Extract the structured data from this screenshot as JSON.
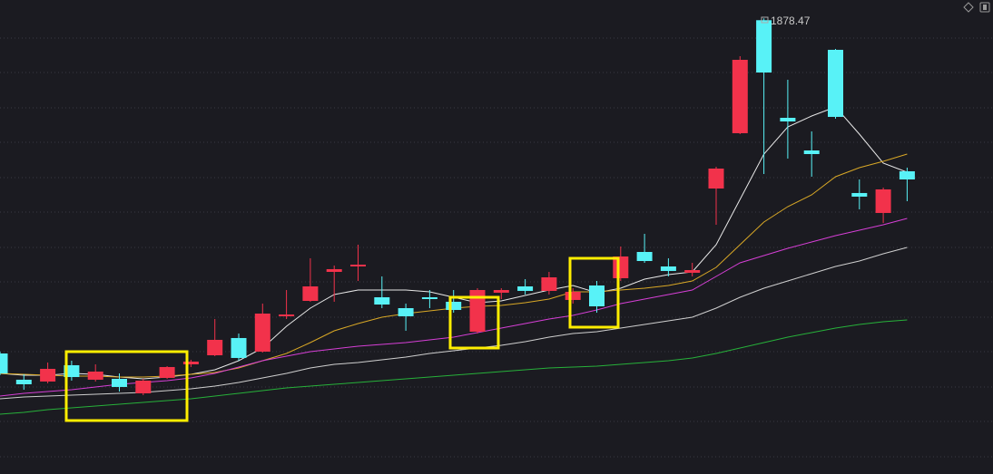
{
  "chart_data": {
    "type": "candlestick",
    "up_color": "#f2324b",
    "down_color": "#58f2f7",
    "ylim": [
      1000,
      1900
    ],
    "open": [
      1231.5,
      1180.8,
      1177.3,
      1208.8,
      1180.8,
      1182.5,
      1154.5,
      1184.3,
      1210.5,
      1228,
      1261.3,
      1235,
      1303.3,
      1333,
      1389,
      1399.5,
      1340,
      1319,
      1340,
      1331.3,
      1273.5,
      1348.8,
      1361,
      1352.3,
      1334.8,
      1362.8,
      1376.8,
      1427.5,
      1399.5,
      1387.3,
      1550,
      1656.8,
      1875,
      1686.5,
      1623.5,
      1817.8,
      1541.3,
      1502.8,
      1583.3
    ],
    "high": [
      1235,
      1191.3,
      1214,
      1217.5,
      1210.5,
      1193,
      1182.5,
      1207,
      1219.3,
      1298,
      1270,
      1327.8,
      1354,
      1415.3,
      1401.3,
      1441.5,
      1380.3,
      1327.8,
      1354,
      1354,
      1357.5,
      1357.5,
      1375,
      1389,
      1357.5,
      1371.5,
      1438,
      1462.5,
      1415.3,
      1406.5,
      1592,
      1805.5,
      1878.47,
      1760,
      1660.3,
      1819.5,
      1567.5,
      1551.8,
      1590.3
    ],
    "low": [
      1189.5,
      1161.5,
      1173.8,
      1179,
      1177.3,
      1158,
      1151,
      1182.5,
      1205.3,
      1226.3,
      1217.5,
      1233.3,
      1298,
      1331.3,
      1331.3,
      1371.5,
      1319,
      1275.3,
      1319,
      1310.3,
      1270,
      1336.5,
      1345.3,
      1345.3,
      1327.8,
      1310.3,
      1371.5,
      1406.5,
      1380.3,
      1380.3,
      1480,
      1655,
      1578,
      1607.8,
      1572.8,
      1684.8,
      1509.8,
      1483.5,
      1525.5
    ],
    "close": [
      1193,
      1172,
      1201.8,
      1186,
      1196.5,
      1166.8,
      1179,
      1205.3,
      1215.8,
      1257.8,
      1222.8,
      1308.5,
      1306.8,
      1361,
      1394.3,
      1403,
      1326,
      1303.3,
      1336.5,
      1315.5,
      1354,
      1354,
      1352.3,
      1378.5,
      1350.5,
      1322.5,
      1418.8,
      1410,
      1390.8,
      1392.5,
      1588.5,
      1798.5,
      1774,
      1679.5,
      1616.5,
      1688.3,
      1534.3,
      1548.3,
      1567.5
    ],
    "series": [
      {
        "color": "#e8e8e8",
        "values": [
          1193,
          1189.5,
          1189.5,
          1193,
          1191.3,
          1186,
          1182.5,
          1186,
          1191.3,
          1200,
          1217.5,
          1242,
          1284,
          1319,
          1345.3,
          1354,
          1354,
          1354,
          1350.5,
          1340,
          1329.5,
          1333,
          1343.5,
          1354,
          1362.8,
          1348.8,
          1357.5,
          1375,
          1383.8,
          1389,
          1441.5,
          1529,
          1616.5,
          1669,
          1690,
          1707.5,
          1655,
          1599,
          1581.5
        ]
      },
      {
        "color": "#d9a826",
        "values": [
          1193,
          1191.3,
          1189.5,
          1187.8,
          1187.8,
          1186,
          1186,
          1187.8,
          1191.3,
          1194.8,
          1203.5,
          1217.5,
          1231.5,
          1252.5,
          1275.3,
          1289.3,
          1301.5,
          1308.5,
          1313.8,
          1319,
          1322.5,
          1324.3,
          1329.5,
          1336.5,
          1350.5,
          1350.5,
          1354,
          1357.5,
          1362.8,
          1371.5,
          1397.8,
          1441.5,
          1485.3,
          1515,
          1537.8,
          1572.8,
          1590.3,
          1602.5,
          1616.5
        ]
      },
      {
        "color": "#d63fd6",
        "values": [
          1149.3,
          1154.5,
          1158,
          1161.5,
          1166.8,
          1172,
          1175.5,
          1179,
          1184.3,
          1193,
          1205.3,
          1217.5,
          1226.3,
          1235,
          1240.3,
          1245.5,
          1249,
          1252.5,
          1257.8,
          1263,
          1271.8,
          1280.5,
          1289.3,
          1298,
          1305,
          1315.5,
          1327.8,
          1336.5,
          1345.3,
          1354,
          1380.3,
          1406.5,
          1420.5,
          1434.5,
          1446.8,
          1459,
          1469.5,
          1480,
          1492.3
        ]
      },
      {
        "color": "#cfcfcf",
        "values": [
          1144,
          1147.5,
          1149.3,
          1151,
          1152.8,
          1154.5,
          1156.3,
          1159.8,
          1163.3,
          1168.5,
          1175.5,
          1184.3,
          1193,
          1203.5,
          1210.5,
          1214,
          1219.3,
          1224.5,
          1231.5,
          1236.8,
          1242,
          1247.3,
          1254.3,
          1263,
          1270,
          1273.5,
          1280.5,
          1287.5,
          1294.5,
          1301.5,
          1319,
          1340,
          1357.5,
          1371.5,
          1385.5,
          1399.5,
          1410,
          1424,
          1436.3
        ]
      },
      {
        "color": "#27b13a",
        "values": [
          1114.3,
          1117.8,
          1123,
          1126.5,
          1130,
          1133.5,
          1137,
          1140.5,
          1144,
          1149.3,
          1154.5,
          1159.8,
          1165,
          1168.5,
          1172,
          1175.5,
          1179,
          1182.5,
          1186,
          1189.5,
          1193,
          1196.5,
          1200,
          1203.5,
          1205.3,
          1207,
          1210.5,
          1214,
          1217.5,
          1222.8,
          1231.5,
          1242,
          1252.5,
          1263,
          1271.8,
          1280.5,
          1287.5,
          1292.8,
          1296.3
        ]
      }
    ],
    "annotations": [
      {
        "text": "1878.47"
      }
    ]
  }
}
